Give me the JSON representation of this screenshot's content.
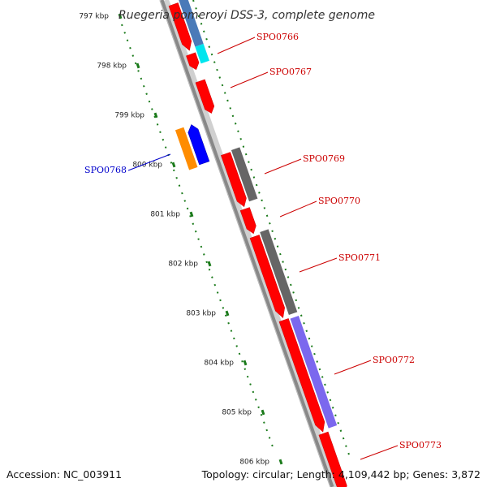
{
  "title": "Ruegeria pomeroyi DSS-3, complete genome",
  "footer": {
    "accession": "Accession: NC_003911",
    "summary": "Topology: circular; Length: 4,109,442 bp; Genes: 3,872"
  },
  "ticks": [
    "797 kbp",
    "798 kbp",
    "799 kbp",
    "800 kbp",
    "801 kbp",
    "802 kbp",
    "803 kbp",
    "804 kbp",
    "805 kbp",
    "806 kbp"
  ],
  "colors": {
    "forward_cds": "#ff0000",
    "reverse_cds": "#0000ff",
    "label_forward": "#cc0000",
    "label_reverse": "#0000cc",
    "backbone": "#888888",
    "tick": "#1a7a1a",
    "slate_blue": "#4a7ab8",
    "cyan": "#00e5ee",
    "orange": "#ff8c00",
    "gray": "#666666",
    "purple": "#7b68ee"
  },
  "genes": [
    {
      "label": "SPO0766",
      "strand": "forward"
    },
    {
      "label": "SPO0767",
      "strand": "forward"
    },
    {
      "label": "SPO0768",
      "strand": "reverse"
    },
    {
      "label": "SPO0769",
      "strand": "forward"
    },
    {
      "label": "SPO0770",
      "strand": "forward"
    },
    {
      "label": "SPO0771",
      "strand": "forward"
    },
    {
      "label": "SPO0772",
      "strand": "forward"
    },
    {
      "label": "SPO0773",
      "strand": "forward"
    }
  ]
}
